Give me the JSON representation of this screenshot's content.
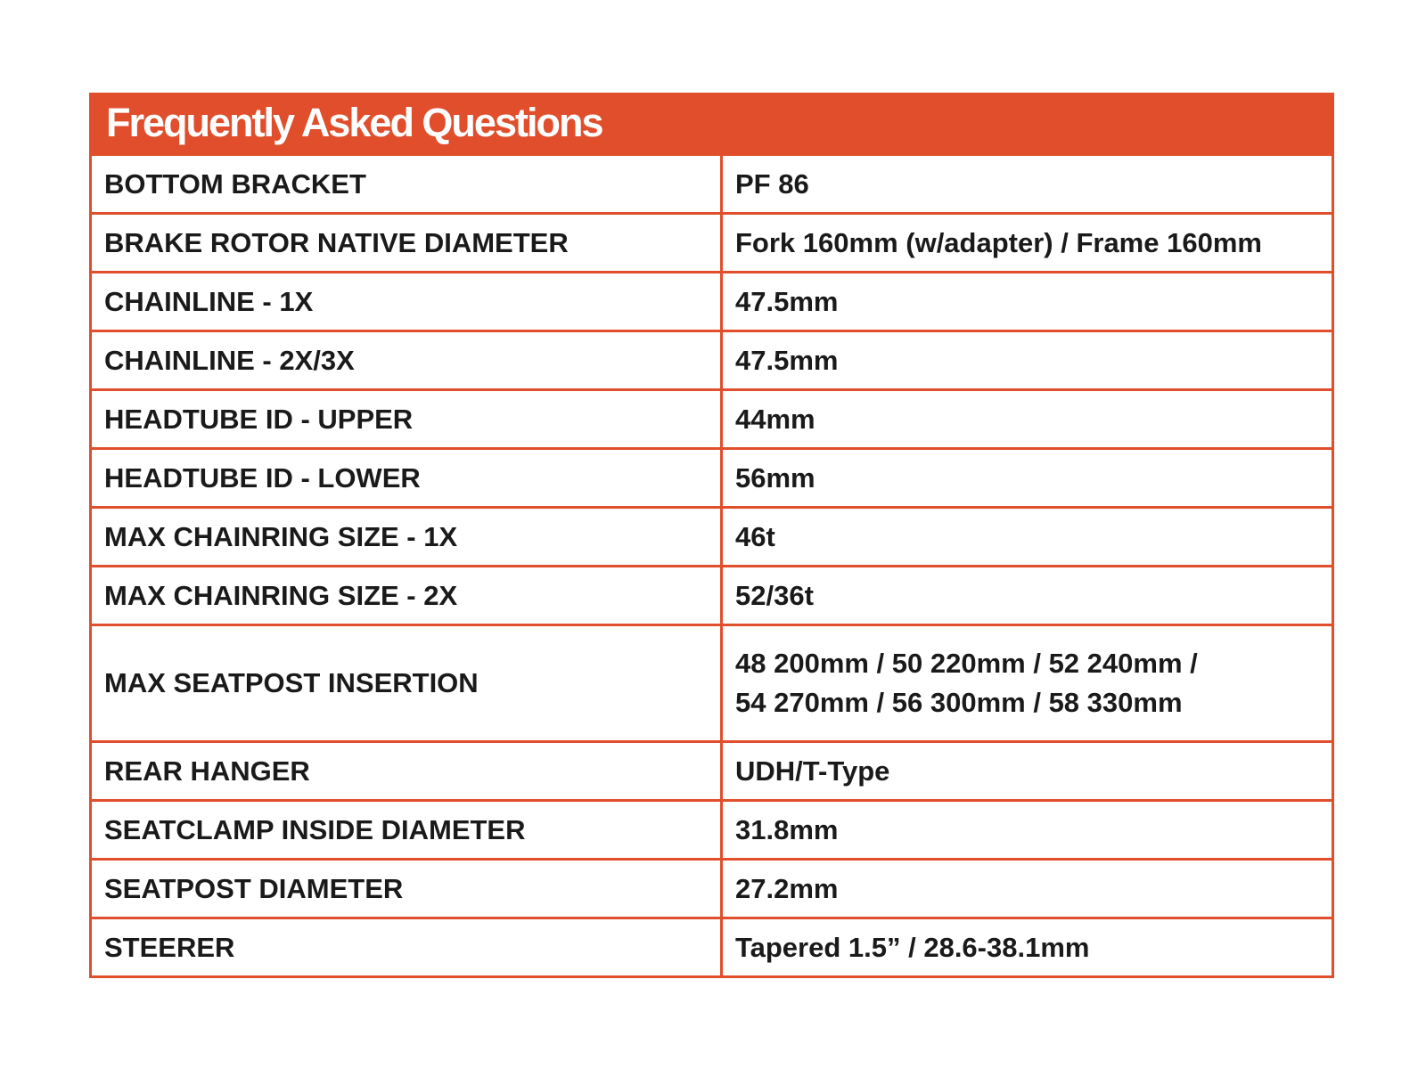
{
  "title": "Frequently Asked Questions",
  "accent_color": "#e04e2c",
  "rows": [
    {
      "label": "BOTTOM BRACKET",
      "value": "PF 86"
    },
    {
      "label": "BRAKE ROTOR NATIVE DIAMETER",
      "value": "Fork 160mm (w/adapter) / Frame 160mm"
    },
    {
      "label": "CHAINLINE - 1X",
      "value": "47.5mm"
    },
    {
      "label": "CHAINLINE - 2X/3X",
      "value": "47.5mm"
    },
    {
      "label": "HEADTUBE ID - UPPER",
      "value": "44mm"
    },
    {
      "label": "HEADTUBE ID - LOWER",
      "value": "56mm"
    },
    {
      "label": "MAX CHAINRING SIZE - 1X",
      "value": "46t"
    },
    {
      "label": "MAX CHAINRING SIZE - 2X",
      "value": "52/36t"
    },
    {
      "label": "MAX SEATPOST INSERTION",
      "value": "48 200mm / 50 220mm / 52 240mm / 54 270mm / 56 300mm / 58 330mm"
    },
    {
      "label": "REAR HANGER",
      "value": "UDH/T-Type"
    },
    {
      "label": "SEATCLAMP INSIDE DIAMETER",
      "value": "31.8mm"
    },
    {
      "label": "SEATPOST DIAMETER",
      "value": "27.2mm"
    },
    {
      "label": "STEERER",
      "value": "Tapered 1.5” / 28.6-38.1mm"
    }
  ]
}
